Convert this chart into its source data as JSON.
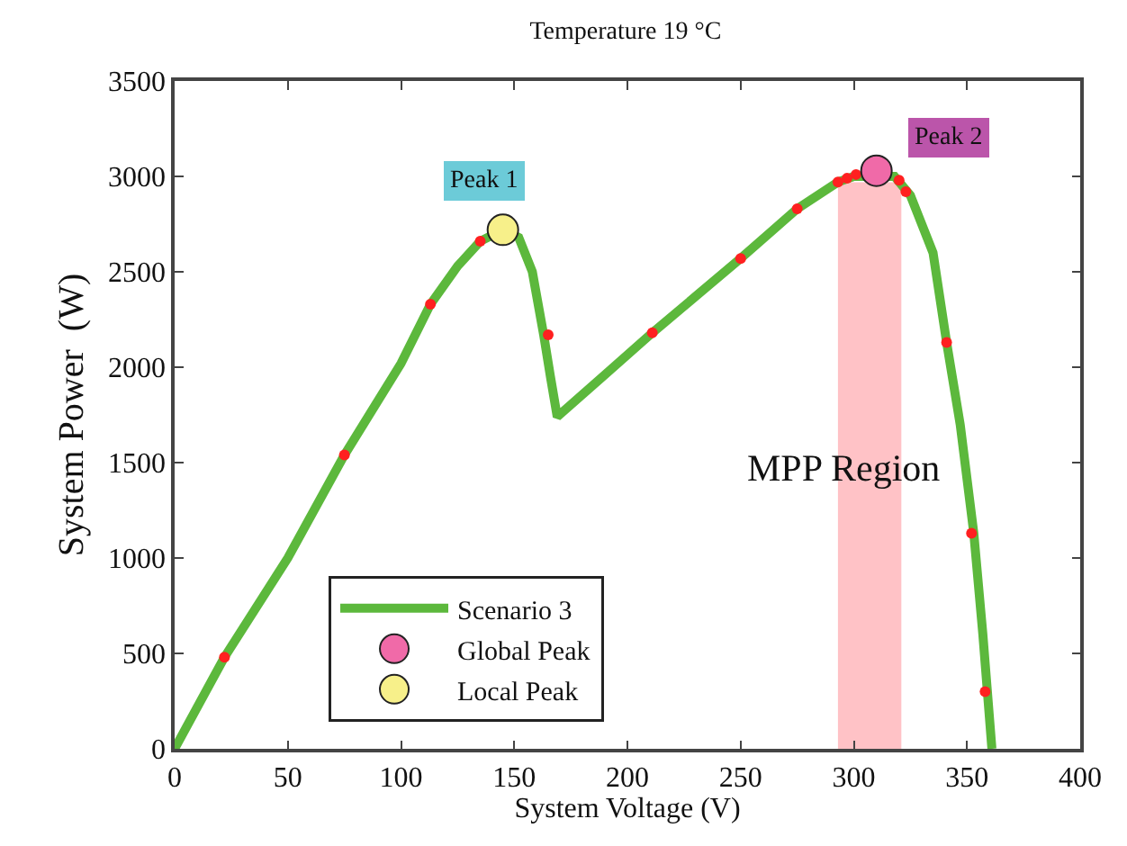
{
  "chart_data": {
    "type": "line",
    "title": "Temperature 19 °C",
    "xlabel": "System Voltage (V)",
    "ylabel": "System Power  (W)",
    "xlim": [
      0,
      400
    ],
    "xticks": [
      0,
      50,
      100,
      150,
      200,
      250,
      300,
      350,
      400
    ],
    "ylim": [
      0,
      3500
    ],
    "yticks": [
      0,
      500,
      1000,
      1500,
      2000,
      2500,
      3000,
      3500
    ],
    "grid": false,
    "legend": "bottom left",
    "line_style": "solid",
    "series": [
      {
        "name": "Scenario 3",
        "marker": "none",
        "color": "#5cb83c",
        "x": [
          0,
          22,
          50,
          75,
          100,
          113,
          125,
          135,
          145,
          152,
          158,
          163,
          166,
          169,
          190,
          211,
          250,
          275,
          293,
          300,
          310,
          318,
          325,
          335,
          341,
          347,
          353,
          357,
          361
        ],
        "values": [
          0,
          480,
          1000,
          1540,
          2020,
          2330,
          2530,
          2660,
          2720,
          2680,
          2500,
          2170,
          1950,
          1740,
          1960,
          2180,
          2570,
          2830,
          2970,
          3000,
          null,
          3000,
          2900,
          2600,
          2130,
          1700,
          1130,
          600,
          0
        ]
      },
      {
        "type": "scatter",
        "marker": "circle",
        "color": "#ff2020",
        "x": [
          22,
          75,
          113,
          135,
          165,
          211,
          250,
          275,
          293,
          297,
          301,
          316,
          320,
          323,
          341,
          352,
          358
        ],
        "values": [
          480,
          1540,
          2330,
          2660,
          2170,
          2180,
          2570,
          2830,
          2970,
          2990,
          3010,
          null,
          2980,
          2920,
          2130,
          1130,
          300
        ]
      },
      {
        "name": "Global Peak",
        "type": "scatter",
        "marker": "circle",
        "color": "#f06aa8",
        "x": [
          310
        ],
        "values": [
          3030
        ]
      },
      {
        "name": "Local Peak",
        "type": "scatter",
        "marker": "circle",
        "color": "#f7f08a",
        "x": [
          145
        ],
        "values": [
          2720
        ]
      }
    ],
    "bands": [
      {
        "axis": "x",
        "from": 293,
        "to": 321,
        "label": "MPP Region",
        "color": "#ffb3b8"
      }
    ],
    "annotations": [
      {
        "text": "Peak 1",
        "x": 145,
        "y": 2720
      },
      {
        "text": "Peak 2",
        "x": 310,
        "y": 3030
      }
    ]
  }
}
